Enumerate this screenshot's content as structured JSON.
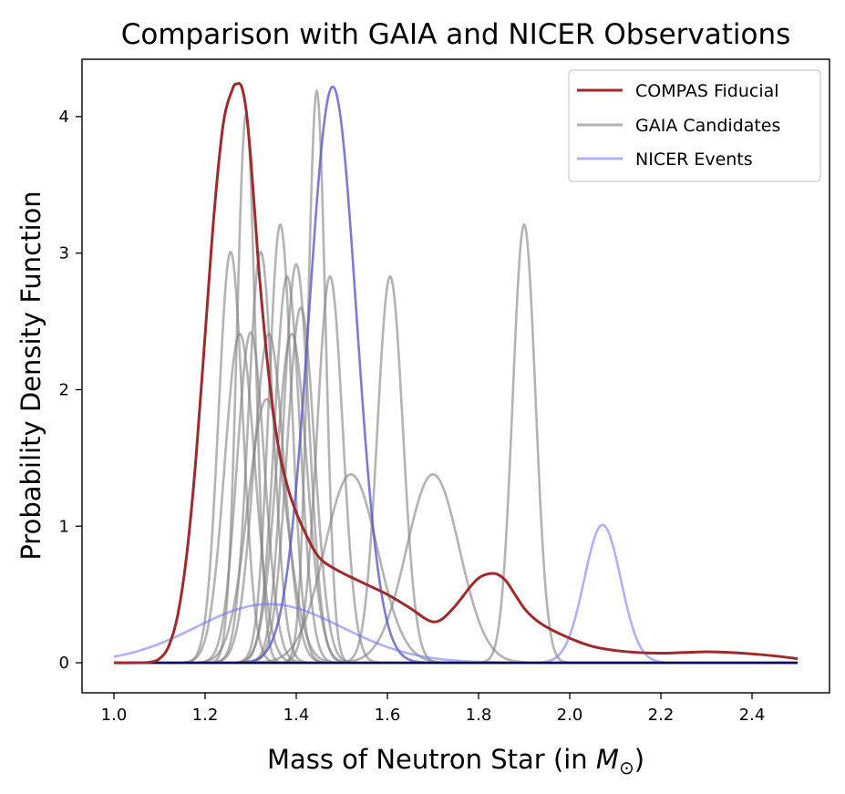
{
  "chart_data": {
    "type": "line",
    "title": "Comparison with GAIA and NICER Observations",
    "xlabel": "Mass of Neutron Star (in ",
    "xlabel_symbol": "M",
    "xlabel_subscript": "⊙",
    "xlabel_close": ")",
    "ylabel": "Probability Density Function",
    "xlim": [
      0.93,
      2.57
    ],
    "ylim": [
      -0.22,
      4.42
    ],
    "xticks": [
      1.0,
      1.2,
      1.4,
      1.6,
      1.8,
      2.0,
      2.2,
      2.4
    ],
    "xtick_labels": [
      "1.0",
      "1.2",
      "1.4",
      "1.6",
      "1.8",
      "2.0",
      "2.2",
      "2.4"
    ],
    "yticks": [
      0,
      1,
      2,
      3,
      4
    ],
    "ytick_labels": [
      "0",
      "1",
      "2",
      "3",
      "4"
    ],
    "grid": false,
    "legend_position": "top-right",
    "legend": [
      {
        "label": "COMPAS Fiducial",
        "color": "#9e2a2b",
        "opacity": 1.0
      },
      {
        "label": "GAIA Candidates",
        "color": "#7f7f7f",
        "opacity": 0.6
      },
      {
        "label": "NICER Events",
        "color": "#7070ff",
        "opacity": 0.55
      }
    ],
    "compas_fiducial": {
      "name": "COMPAS Fiducial",
      "color": "#9e2a2b",
      "x": [
        1.0,
        1.05,
        1.08,
        1.1,
        1.12,
        1.14,
        1.16,
        1.18,
        1.2,
        1.22,
        1.24,
        1.26,
        1.27,
        1.28,
        1.29,
        1.3,
        1.31,
        1.32,
        1.34,
        1.36,
        1.38,
        1.4,
        1.42,
        1.44,
        1.46,
        1.5,
        1.55,
        1.6,
        1.65,
        1.68,
        1.7,
        1.72,
        1.75,
        1.78,
        1.8,
        1.82,
        1.84,
        1.86,
        1.88,
        1.9,
        1.92,
        1.95,
        2.0,
        2.05,
        2.1,
        2.15,
        2.2,
        2.25,
        2.3,
        2.35,
        2.4,
        2.45,
        2.5
      ],
      "y": [
        0.0,
        0.0,
        0.005,
        0.03,
        0.12,
        0.35,
        0.8,
        1.5,
        2.4,
        3.3,
        3.95,
        4.2,
        4.24,
        4.22,
        4.05,
        3.7,
        3.25,
        2.8,
        2.1,
        1.6,
        1.3,
        1.1,
        0.95,
        0.82,
        0.74,
        0.66,
        0.58,
        0.5,
        0.4,
        0.33,
        0.3,
        0.32,
        0.42,
        0.55,
        0.62,
        0.65,
        0.65,
        0.6,
        0.5,
        0.4,
        0.33,
        0.26,
        0.18,
        0.12,
        0.09,
        0.075,
        0.07,
        0.075,
        0.08,
        0.075,
        0.065,
        0.05,
        0.03
      ]
    },
    "gaia_candidates": {
      "name": "GAIA Candidates",
      "color": "#808080",
      "curves": [
        {
          "mu": 1.256,
          "sigma": 0.0265,
          "peak": 3.01
        },
        {
          "mu": 1.29,
          "sigma": 0.02,
          "peak": 4.02
        },
        {
          "mu": 1.276,
          "sigma": 0.033,
          "peak": 2.41
        },
        {
          "mu": 1.3,
          "sigma": 0.03,
          "peak": 2.42
        },
        {
          "mu": 1.322,
          "sigma": 0.027,
          "peak": 3.01
        },
        {
          "mu": 1.335,
          "sigma": 0.041,
          "peak": 1.93
        },
        {
          "mu": 1.34,
          "sigma": 0.033,
          "peak": 2.41
        },
        {
          "mu": 1.365,
          "sigma": 0.025,
          "peak": 3.21
        },
        {
          "mu": 1.38,
          "sigma": 0.028,
          "peak": 2.83
        },
        {
          "mu": 1.39,
          "sigma": 0.033,
          "peak": 2.41
        },
        {
          "mu": 1.4,
          "sigma": 0.028,
          "peak": 2.92
        },
        {
          "mu": 1.41,
          "sigma": 0.03,
          "peak": 2.6
        },
        {
          "mu": 1.445,
          "sigma": 0.019,
          "peak": 4.19
        },
        {
          "mu": 1.474,
          "sigma": 0.028,
          "peak": 2.83
        },
        {
          "mu": 1.52,
          "sigma": 0.058,
          "peak": 1.38
        },
        {
          "mu": 1.606,
          "sigma": 0.028,
          "peak": 2.83
        },
        {
          "mu": 1.7,
          "sigma": 0.058,
          "peak": 1.38
        },
        {
          "mu": 1.9,
          "sigma": 0.025,
          "peak": 3.21
        }
      ]
    },
    "nicer_events": {
      "name": "NICER Events",
      "color": "#7070ff",
      "curves": [
        {
          "mu": 1.48,
          "sigma": 0.052,
          "peak": 4.22,
          "opacity": 0.8,
          "color": "#5a5ac8"
        },
        {
          "mu": 1.34,
          "sigma": 0.16,
          "peak": 0.43,
          "opacity": 0.55,
          "color": "#7070ff"
        },
        {
          "mu": 2.072,
          "sigma": 0.04,
          "peak": 1.01,
          "opacity": 0.55,
          "color": "#7070ff"
        }
      ]
    }
  }
}
